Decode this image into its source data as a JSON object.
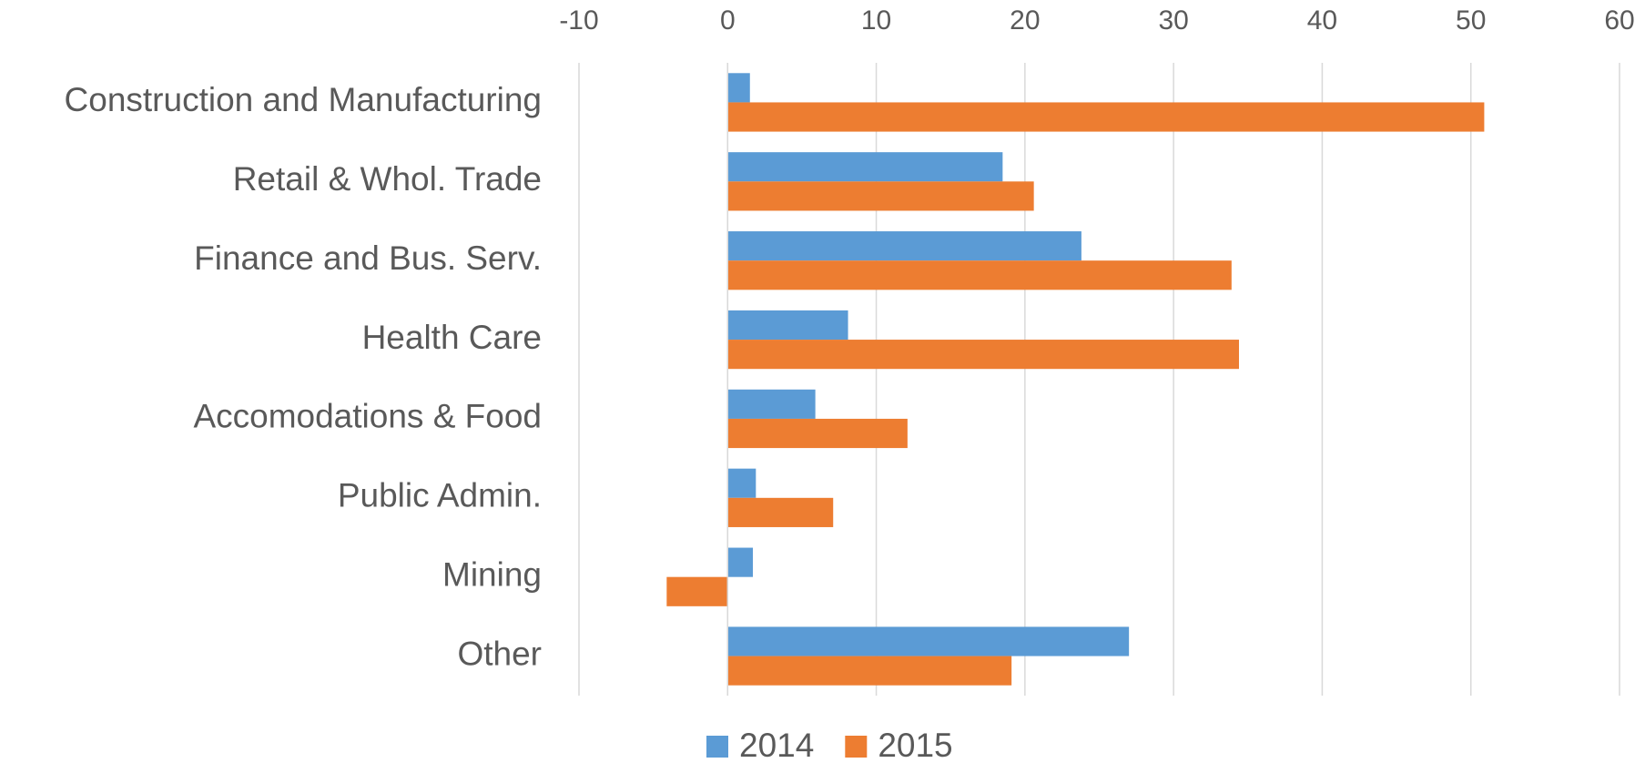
{
  "chart_data": {
    "type": "hbar",
    "categories": [
      "Construction and Manufacturing",
      "Retail & Whol. Trade",
      "Finance and Bus. Serv.",
      "Health Care",
      "Accomodations & Food",
      "Public Admin.",
      "Mining",
      "Other"
    ],
    "series": [
      {
        "name": "2014",
        "color": "#5b9bd5",
        "values": [
          1.5,
          18.5,
          23.8,
          8.1,
          5.9,
          1.9,
          1.7,
          27
        ]
      },
      {
        "name": "2015",
        "color": "#ed7d31",
        "values": [
          50.9,
          20.6,
          33.9,
          34.4,
          12.1,
          7.1,
          -4.1,
          19.1
        ]
      }
    ],
    "xlim": [
      -10,
      60
    ],
    "xticks": [
      -10,
      0,
      10,
      20,
      30,
      40,
      50,
      60
    ],
    "grid": true,
    "legend": "bottom"
  }
}
